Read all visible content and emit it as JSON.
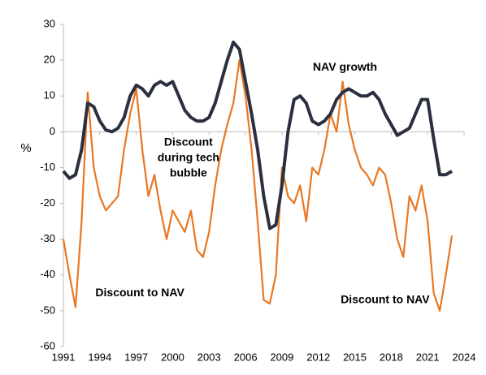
{
  "chart_data": {
    "type": "line",
    "y_label": "%",
    "x": [
      1991,
      1991.5,
      1992,
      1992.5,
      1993,
      1993.5,
      1994,
      1994.5,
      1995,
      1995.5,
      1996,
      1996.5,
      1997,
      1997.5,
      1998,
      1998.5,
      1999,
      1999.5,
      2000,
      2000.5,
      2001,
      2001.5,
      2002,
      2002.5,
      2003,
      2003.5,
      2004,
      2004.5,
      2005,
      2005.5,
      2006,
      2006.5,
      2007,
      2007.5,
      2008,
      2008.5,
      2009,
      2009.5,
      2010,
      2010.5,
      2011,
      2011.5,
      2012,
      2012.5,
      2013,
      2013.5,
      2014,
      2014.5,
      2015,
      2015.5,
      2016,
      2016.5,
      2017,
      2017.5,
      2018,
      2018.5,
      2019,
      2019.5,
      2020,
      2020.5,
      2021,
      2021.5,
      2022,
      2022.5,
      2023
    ],
    "series": [
      {
        "name": "NAV growth",
        "color": "#2b3040",
        "width": 4,
        "values": [
          -11,
          -13,
          -12,
          -5,
          8,
          7,
          3,
          0.5,
          0,
          1,
          4,
          10,
          13,
          12,
          10,
          13,
          14,
          13,
          14,
          10,
          6,
          4,
          3,
          3,
          4,
          8,
          14,
          20,
          25,
          23,
          14,
          5,
          -5,
          -18,
          -27,
          -26,
          -15,
          0,
          9,
          10,
          8,
          3,
          2,
          3,
          5,
          9,
          11,
          12,
          11,
          10,
          10,
          11,
          9,
          5,
          2,
          -1,
          0,
          1,
          5,
          9,
          9,
          -2,
          -12,
          -12,
          -11
        ]
      },
      {
        "name": "Discount to NAV",
        "color": "#e87722",
        "width": 2.2,
        "values": [
          -30,
          -40,
          -49,
          -25,
          11,
          -10,
          -18,
          -22,
          -20,
          -18,
          -5,
          5,
          12,
          -5,
          -18,
          -12,
          -22,
          -30,
          -22,
          -25,
          -28,
          -22,
          -33,
          -35,
          -28,
          -15,
          -5,
          2,
          8,
          20,
          10,
          -5,
          -25,
          -47,
          -48,
          -40,
          -10,
          -18,
          -20,
          -15,
          -25,
          -10,
          -12,
          -5,
          5,
          0,
          14,
          2,
          -5,
          -10,
          -12,
          -15,
          -10,
          -12,
          -20,
          -30,
          -35,
          -18,
          -22,
          -15,
          -25,
          -45,
          -50,
          -40,
          -29
        ]
      }
    ],
    "xlim": [
      1991,
      2024
    ],
    "xticks": [
      1991,
      1994,
      1997,
      2000,
      2003,
      2006,
      2009,
      2012,
      2015,
      2018,
      2021,
      2024
    ],
    "ylim": [
      -60,
      30
    ],
    "yticks": [
      -60,
      -50,
      -40,
      -30,
      -20,
      -10,
      0,
      10,
      20,
      30
    ],
    "annotations": [
      {
        "lines": [
          "NAV growth"
        ],
        "x": 2014.2,
        "y": 18
      },
      {
        "lines": [
          "Discount",
          "during tech",
          "bubble"
        ],
        "x": 2001.3,
        "y": -3
      },
      {
        "lines": [
          "Discount to NAV"
        ],
        "x": 1997.3,
        "y": -45
      },
      {
        "lines": [
          "Discount to NAV"
        ],
        "x": 2017.5,
        "y": -47
      }
    ]
  }
}
